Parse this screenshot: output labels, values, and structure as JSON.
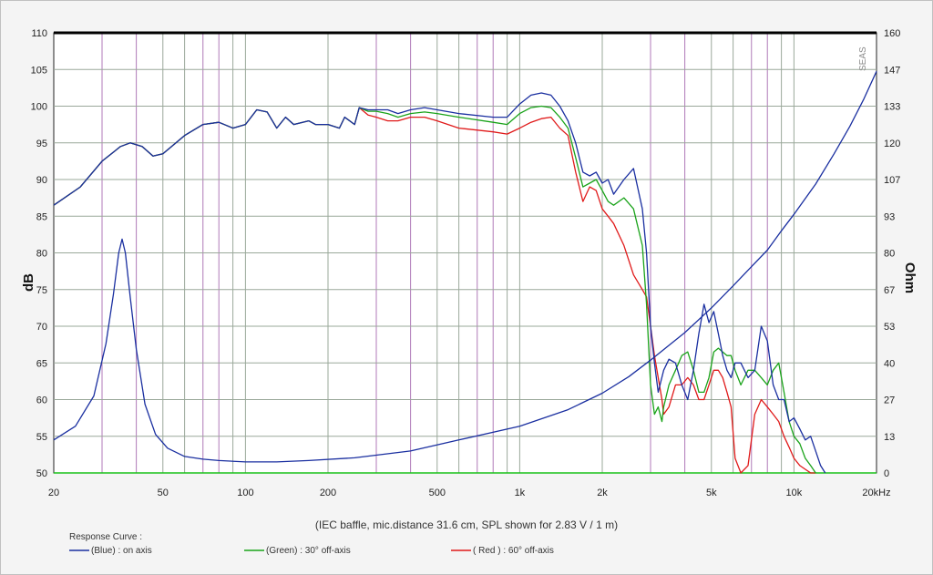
{
  "chart_data": {
    "type": "line",
    "x_scale": "log",
    "xlim": [
      20,
      20000
    ],
    "ylim_left": [
      50,
      110
    ],
    "ylim_right": [
      0,
      160
    ],
    "ylabel_left": "dB",
    "ylabel_right": "Ohm",
    "x_ticks": [
      "20",
      "50",
      "100",
      "200",
      "500",
      "1k",
      "2k",
      "5k",
      "10k",
      "20kHz"
    ],
    "x_tick_values": [
      20,
      50,
      100,
      200,
      500,
      1000,
      2000,
      5000,
      10000,
      20000
    ],
    "y_ticks_left": [
      "110",
      "105",
      "100",
      "95",
      "90",
      "85",
      "80",
      "75",
      "70",
      "65",
      "60",
      "55",
      "50"
    ],
    "y_ticks_right": [
      "160",
      "147",
      "133",
      "120",
      "107",
      "93",
      "80",
      "67",
      "53",
      "40",
      "27",
      "13",
      "0"
    ],
    "caption": "(IEC baffle, mic.distance 31.6 cm, SPL shown for 2.83 V / 1 m)",
    "legend_title": "Response Curve :",
    "legend": [
      {
        "label": "(Blue)  : on axis",
        "color": "#1a2fa0"
      },
      {
        "label": "(Green) : 30° off-axis",
        "color": "#1aa31a"
      },
      {
        "label": "( Red ) : 60° off-axis",
        "color": "#e01a1a"
      }
    ],
    "brand_mark": "SEAS",
    "series": [
      {
        "color": "#1a2fa0",
        "x": [
          20,
          25,
          30,
          35,
          38,
          42,
          46,
          50,
          60,
          70,
          80,
          90,
          100,
          110,
          120,
          130,
          140,
          150,
          170,
          180,
          200,
          220,
          230,
          250,
          260,
          280,
          300,
          330,
          360,
          400,
          450,
          500,
          600,
          800,
          900,
          1000,
          1100,
          1200,
          1300,
          1400,
          1500,
          1600,
          1700,
          1800,
          1900,
          2000,
          2100,
          2200,
          2400,
          2600,
          2800,
          2900,
          3000,
          3100,
          3200,
          3350,
          3500,
          3700,
          3900,
          4100,
          4300,
          4500,
          4700,
          4900,
          5100,
          5300,
          5500,
          5700,
          5900,
          6100,
          6400,
          6800,
          7200,
          7600,
          8000,
          8400,
          8800,
          9200,
          9600,
          10000,
          10500,
          11000,
          11500,
          12000,
          12500,
          13000
        ],
        "y": [
          86.5,
          89,
          92.5,
          94.5,
          95,
          94.5,
          93.2,
          93.5,
          96,
          97.5,
          97.8,
          97,
          97.5,
          99.5,
          99.2,
          97,
          98.5,
          97.5,
          98,
          97.5,
          97.5,
          97,
          98.5,
          97.5,
          99.8,
          99.5,
          99.5,
          99.5,
          99,
          99.5,
          99.8,
          99.5,
          99,
          98.5,
          98.5,
          100.3,
          101.5,
          101.8,
          101.5,
          100,
          98,
          95,
          91,
          90.5,
          91,
          89.5,
          90,
          88,
          90,
          91.5,
          86,
          80,
          70,
          65,
          61,
          64,
          65.5,
          65,
          62,
          60,
          64,
          69,
          73,
          70.5,
          72,
          69,
          66,
          64,
          63,
          65,
          65,
          63,
          64,
          70,
          68,
          62,
          60,
          60,
          57,
          57.5,
          56,
          54.5,
          55,
          53,
          51,
          50
        ]
      },
      {
        "color": "#1aa31a",
        "x": [
          20,
          25,
          30,
          35,
          38,
          42,
          46,
          50,
          60,
          70,
          80,
          90,
          100,
          110,
          120,
          130,
          140,
          150,
          170,
          180,
          200,
          220,
          230,
          250,
          260,
          280,
          300,
          330,
          360,
          400,
          450,
          500,
          600,
          800,
          900,
          1000,
          1100,
          1200,
          1300,
          1400,
          1500,
          1600,
          1700,
          1800,
          1900,
          2000,
          2100,
          2200,
          2400,
          2600,
          2800,
          2900,
          3000,
          3100,
          3200,
          3300,
          3350,
          3500,
          3700,
          3900,
          4100,
          4300,
          4500,
          4700,
          4900,
          5100,
          5300,
          5500,
          5700,
          5900,
          6100,
          6400,
          6800,
          7200,
          7600,
          8000,
          8400,
          8800,
          9200,
          9600,
          10000,
          10500,
          11000,
          11500,
          12000
        ],
        "y": [
          86.5,
          89,
          92.5,
          94.5,
          95,
          94.5,
          93.2,
          93.5,
          96,
          97.5,
          97.8,
          97,
          97.5,
          99.5,
          99.2,
          97,
          98.5,
          97.5,
          98,
          97.5,
          97.5,
          97,
          98.5,
          97.5,
          99.8,
          99.3,
          99.3,
          99,
          98.5,
          99,
          99.2,
          99,
          98.5,
          97.8,
          97.5,
          99,
          99.8,
          100,
          99.8,
          98.5,
          97,
          93,
          89,
          89.5,
          90,
          88.5,
          87,
          86.5,
          87.5,
          86,
          81,
          73,
          62,
          58,
          59,
          57,
          59,
          62,
          64,
          66,
          66.5,
          64,
          61,
          61,
          63,
          66.5,
          67,
          66.5,
          66,
          66,
          64,
          62,
          64,
          64,
          63,
          62,
          64,
          65,
          61,
          57,
          55,
          54,
          52,
          51,
          50
        ]
      },
      {
        "color": "#e01a1a",
        "x": [
          20,
          25,
          30,
          35,
          38,
          42,
          46,
          50,
          60,
          70,
          80,
          90,
          100,
          110,
          120,
          130,
          140,
          150,
          170,
          180,
          200,
          220,
          230,
          250,
          260,
          280,
          300,
          330,
          360,
          400,
          450,
          500,
          600,
          800,
          900,
          1000,
          1100,
          1200,
          1300,
          1400,
          1500,
          1600,
          1700,
          1800,
          1900,
          2000,
          2100,
          2200,
          2400,
          2600,
          2800,
          2900,
          3000,
          3100,
          3200,
          3300,
          3350,
          3500,
          3700,
          3900,
          4100,
          4300,
          4500,
          4700,
          4900,
          5100,
          5300,
          5500,
          5700,
          5900,
          6100,
          6400,
          6800,
          7200,
          7600,
          8000,
          8400,
          8800,
          9200,
          9600,
          10000,
          10500,
          11000,
          11500,
          12000
        ],
        "y": [
          86.5,
          89,
          92.5,
          94.5,
          95,
          94.5,
          93.2,
          93.5,
          96,
          97.5,
          97.8,
          97,
          97.5,
          99.5,
          99.2,
          97,
          98.5,
          97.5,
          98,
          97.5,
          97.5,
          97,
          98.5,
          97.5,
          99.8,
          98.8,
          98.5,
          98,
          98,
          98.5,
          98.5,
          98,
          97,
          96.5,
          96.2,
          97,
          97.8,
          98.3,
          98.5,
          97,
          96,
          91,
          87,
          89,
          88.5,
          86,
          85,
          84,
          81,
          77,
          75,
          74,
          70,
          66,
          63,
          60,
          58,
          59,
          62,
          62,
          63,
          62,
          60,
          60,
          62,
          64,
          64,
          63,
          61,
          59,
          52,
          50,
          51,
          58,
          60,
          59,
          58,
          57,
          55,
          53.5,
          52,
          51,
          50.5,
          50,
          50
        ]
      },
      {
        "color": "#1a2fa0",
        "axis": "right",
        "x": [
          20,
          24,
          28,
          31,
          33,
          34.5,
          35.5,
          36.5,
          38,
          40,
          43,
          47,
          52,
          60,
          70,
          80,
          100,
          130,
          170,
          250,
          400,
          600,
          1000,
          1500,
          2000,
          2500,
          3000,
          4000,
          5000,
          6000,
          7000,
          8000,
          9000,
          10000,
          12000,
          14000,
          16000,
          18000,
          20000
        ],
        "y": [
          12,
          17,
          28,
          47,
          65,
          80,
          85,
          80,
          64,
          45,
          25,
          14,
          9,
          6,
          5,
          4.5,
          4,
          4,
          4.5,
          5.5,
          8,
          12,
          17,
          23,
          29,
          35,
          41,
          51,
          60,
          68,
          75,
          81,
          88,
          94,
          105,
          116,
          126,
          136,
          146
        ]
      }
    ]
  }
}
